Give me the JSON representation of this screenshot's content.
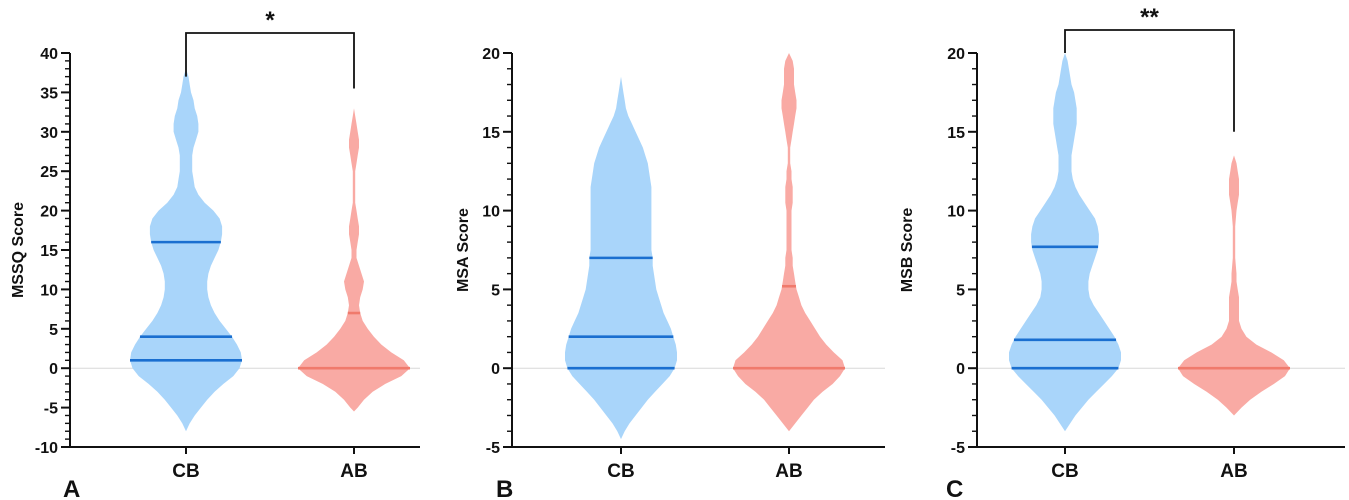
{
  "chart_data": [
    {
      "type": "violin",
      "panel_label": "A",
      "ylabel": "MSSQ Score",
      "xlabel": "",
      "ylim": [
        -10,
        40
      ],
      "y_major_ticks": [
        -10,
        -5,
        0,
        5,
        10,
        15,
        20,
        25,
        30,
        35,
        40
      ],
      "y_minor_step": 1,
      "zero_line": true,
      "categories": [
        "CB",
        "AB"
      ],
      "series": [
        {
          "category": "CB",
          "color": "#a9d5fa",
          "quartile_color": "#1a6fd0",
          "median": 4,
          "q1": 1,
          "q3": 16,
          "density": [
            [
              -8,
              0
            ],
            [
              -7,
              3
            ],
            [
              -6,
              7
            ],
            [
              -5,
              12
            ],
            [
              -4,
              17
            ],
            [
              -3,
              23
            ],
            [
              -2,
              30
            ],
            [
              -1,
              38
            ],
            [
              0,
              43
            ],
            [
              1,
              45
            ],
            [
              2,
              44
            ],
            [
              3,
              41
            ],
            [
              4,
              37
            ],
            [
              5,
              32
            ],
            [
              6,
              27
            ],
            [
              7,
              23
            ],
            [
              8,
              20
            ],
            [
              9,
              18
            ],
            [
              10,
              17
            ],
            [
              11,
              17
            ],
            [
              12,
              18
            ],
            [
              13,
              20
            ],
            [
              14,
              23
            ],
            [
              15,
              26
            ],
            [
              16,
              28
            ],
            [
              17,
              29
            ],
            [
              18,
              29
            ],
            [
              19,
              27
            ],
            [
              20,
              22
            ],
            [
              21,
              15
            ],
            [
              22,
              10
            ],
            [
              23,
              7
            ],
            [
              24,
              6
            ],
            [
              25,
              5
            ],
            [
              26,
              5
            ],
            [
              27,
              5
            ],
            [
              28,
              6
            ],
            [
              29,
              8
            ],
            [
              30,
              10
            ],
            [
              31,
              10
            ],
            [
              32,
              9
            ],
            [
              33,
              7
            ],
            [
              34,
              6
            ],
            [
              35,
              4
            ],
            [
              36,
              3
            ],
            [
              37,
              2
            ],
            [
              38,
              0
            ]
          ]
        },
        {
          "category": "AB",
          "color": "#f9aaa4",
          "quartile_color": "#f07a6c",
          "median": 0,
          "q1": 0,
          "q3": 7,
          "density": [
            [
              -5.5,
              0
            ],
            [
              -5,
              3
            ],
            [
              -4,
              8
            ],
            [
              -3,
              15
            ],
            [
              -2,
              25
            ],
            [
              -1,
              38
            ],
            [
              0,
              45
            ],
            [
              1,
              40
            ],
            [
              2,
              30
            ],
            [
              3,
              22
            ],
            [
              4,
              16
            ],
            [
              5,
              11
            ],
            [
              6,
              7
            ],
            [
              7,
              5
            ],
            [
              8,
              4
            ],
            [
              9,
              5
            ],
            [
              10,
              7
            ],
            [
              11,
              8
            ],
            [
              12,
              6
            ],
            [
              13,
              4
            ],
            [
              14,
              2
            ],
            [
              15,
              2
            ],
            [
              16,
              3
            ],
            [
              17,
              4
            ],
            [
              18,
              4
            ],
            [
              19,
              3
            ],
            [
              20,
              2
            ],
            [
              21,
              1
            ],
            [
              22,
              1
            ],
            [
              23,
              1
            ],
            [
              24,
              1
            ],
            [
              25,
              1
            ],
            [
              26,
              2
            ],
            [
              27,
              3
            ],
            [
              28,
              4
            ],
            [
              29,
              4
            ],
            [
              30,
              3
            ],
            [
              31,
              2
            ],
            [
              32,
              1
            ],
            [
              33,
              0
            ]
          ]
        }
      ],
      "significance": {
        "pair": [
          "CB",
          "AB"
        ],
        "label": "*",
        "left_end": 37,
        "right_end": 35.5
      }
    },
    {
      "type": "violin",
      "panel_label": "B",
      "ylabel": "MSA Score",
      "xlabel": "",
      "ylim": [
        -5,
        20
      ],
      "y_major_ticks": [
        -5,
        0,
        5,
        10,
        15,
        20
      ],
      "y_minor_step": 1,
      "zero_line": true,
      "categories": [
        "CB",
        "AB"
      ],
      "series": [
        {
          "category": "CB",
          "color": "#a9d5fa",
          "quartile_color": "#1a6fd0",
          "median": 2,
          "q1": 0,
          "q3": 7,
          "density": [
            [
              -4.5,
              0
            ],
            [
              -4,
              3
            ],
            [
              -3.5,
              7
            ],
            [
              -3,
              12
            ],
            [
              -2.5,
              17
            ],
            [
              -2,
              22
            ],
            [
              -1.5,
              28
            ],
            [
              -1,
              34
            ],
            [
              -0.5,
              40
            ],
            [
              0,
              44
            ],
            [
              0.5,
              46
            ],
            [
              1,
              46
            ],
            [
              1.5,
              45
            ],
            [
              2,
              43
            ],
            [
              2.5,
              41
            ],
            [
              3,
              38
            ],
            [
              3.5,
              35
            ],
            [
              4,
              33
            ],
            [
              4.5,
              31
            ],
            [
              5,
              29
            ],
            [
              5.5,
              28
            ],
            [
              6,
              27
            ],
            [
              6.5,
              26
            ],
            [
              7,
              26
            ],
            [
              7.5,
              25
            ],
            [
              8,
              25
            ],
            [
              8.5,
              25
            ],
            [
              9,
              25
            ],
            [
              9.5,
              25
            ],
            [
              10,
              25
            ],
            [
              10.5,
              25
            ],
            [
              11,
              25
            ],
            [
              11.5,
              25
            ],
            [
              12,
              24
            ],
            [
              12.5,
              23
            ],
            [
              13,
              22
            ],
            [
              13.5,
              20
            ],
            [
              14,
              18
            ],
            [
              14.5,
              15
            ],
            [
              15,
              12
            ],
            [
              15.5,
              9
            ],
            [
              16,
              6
            ],
            [
              16.5,
              4
            ],
            [
              17,
              3
            ],
            [
              17.5,
              2
            ],
            [
              18,
              1
            ],
            [
              18.5,
              0
            ]
          ]
        },
        {
          "category": "AB",
          "color": "#f9aaa4",
          "quartile_color": "#f07a6c",
          "median": 0,
          "q1": 0,
          "q3": 5.2,
          "density": [
            [
              -4,
              0
            ],
            [
              -3.5,
              5
            ],
            [
              -3,
              10
            ],
            [
              -2.5,
              15
            ],
            [
              -2,
              20
            ],
            [
              -1.5,
              27
            ],
            [
              -1,
              35
            ],
            [
              -0.5,
              41
            ],
            [
              0,
              45
            ],
            [
              0.5,
              43
            ],
            [
              1,
              36
            ],
            [
              1.5,
              30
            ],
            [
              2,
              25
            ],
            [
              2.5,
              21
            ],
            [
              3,
              17
            ],
            [
              3.5,
              13
            ],
            [
              4,
              10
            ],
            [
              4.5,
              8
            ],
            [
              5,
              6
            ],
            [
              5.5,
              5
            ],
            [
              6,
              4
            ],
            [
              6.5,
              3
            ],
            [
              7,
              3
            ],
            [
              7.5,
              2
            ],
            [
              8,
              2
            ],
            [
              9,
              2
            ],
            [
              10,
              2
            ],
            [
              10.5,
              3
            ],
            [
              11,
              3
            ],
            [
              11.5,
              3
            ],
            [
              12,
              2
            ],
            [
              12.5,
              2
            ],
            [
              13,
              1
            ],
            [
              13.5,
              1
            ],
            [
              14,
              1
            ],
            [
              14.5,
              2
            ],
            [
              15,
              3
            ],
            [
              15.5,
              4
            ],
            [
              16,
              5
            ],
            [
              16.5,
              6
            ],
            [
              17,
              6
            ],
            [
              17.5,
              5
            ],
            [
              18,
              4
            ],
            [
              18.5,
              4
            ],
            [
              19,
              4
            ],
            [
              19.5,
              3
            ],
            [
              20,
              0
            ]
          ]
        }
      ]
    },
    {
      "type": "violin",
      "panel_label": "C",
      "ylabel": "MSB Score",
      "xlabel": "",
      "ylim": [
        -5,
        20
      ],
      "y_major_ticks": [
        -5,
        0,
        5,
        10,
        15,
        20
      ],
      "y_minor_step": 1,
      "zero_line": true,
      "categories": [
        "CB",
        "AB"
      ],
      "series": [
        {
          "category": "CB",
          "color": "#a9d5fa",
          "quartile_color": "#1a6fd0",
          "median": 1.8,
          "q1": 0,
          "q3": 7.7,
          "density": [
            [
              -4,
              0
            ],
            [
              -3.5,
              4
            ],
            [
              -3,
              8
            ],
            [
              -2.5,
              13
            ],
            [
              -2,
              18
            ],
            [
              -1.5,
              24
            ],
            [
              -1,
              30
            ],
            [
              -0.5,
              36
            ],
            [
              0,
              41
            ],
            [
              0.5,
              43
            ],
            [
              1,
              43
            ],
            [
              1.5,
              41
            ],
            [
              2,
              38
            ],
            [
              2.5,
              34
            ],
            [
              3,
              30
            ],
            [
              3.5,
              26
            ],
            [
              4,
              22
            ],
            [
              4.5,
              19
            ],
            [
              5,
              18
            ],
            [
              5.5,
              18
            ],
            [
              6,
              19
            ],
            [
              6.5,
              21
            ],
            [
              7,
              23
            ],
            [
              7.5,
              25
            ],
            [
              8,
              26
            ],
            [
              8.5,
              26
            ],
            [
              9,
              25
            ],
            [
              9.5,
              23
            ],
            [
              10,
              19
            ],
            [
              10.5,
              15
            ],
            [
              11,
              11
            ],
            [
              11.5,
              8
            ],
            [
              12,
              6
            ],
            [
              12.5,
              5
            ],
            [
              13,
              5
            ],
            [
              13.5,
              5
            ],
            [
              14,
              6
            ],
            [
              14.5,
              7
            ],
            [
              15,
              8
            ],
            [
              15.5,
              9
            ],
            [
              16,
              9
            ],
            [
              16.5,
              9
            ],
            [
              17,
              8
            ],
            [
              17.5,
              7
            ],
            [
              18,
              5
            ],
            [
              18.5,
              4
            ],
            [
              19,
              3
            ],
            [
              19.5,
              2
            ],
            [
              20,
              0
            ]
          ]
        },
        {
          "category": "AB",
          "color": "#f9aaa4",
          "quartile_color": "#f07a6c",
          "median": 0,
          "q1": 0,
          "q3": 0,
          "density": [
            [
              -3,
              0
            ],
            [
              -2.5,
              6
            ],
            [
              -2,
              13
            ],
            [
              -1.5,
              22
            ],
            [
              -1,
              32
            ],
            [
              -0.5,
              41
            ],
            [
              0,
              45
            ],
            [
              0.5,
              40
            ],
            [
              1,
              30
            ],
            [
              1.5,
              18
            ],
            [
              2,
              10
            ],
            [
              2.5,
              6
            ],
            [
              3,
              4
            ],
            [
              3.5,
              4
            ],
            [
              4,
              4
            ],
            [
              4.5,
              4
            ],
            [
              5,
              3
            ],
            [
              5.5,
              2
            ],
            [
              6,
              2
            ],
            [
              7,
              1
            ],
            [
              8,
              1
            ],
            [
              9,
              1
            ],
            [
              10,
              2
            ],
            [
              10.5,
              3
            ],
            [
              11,
              4
            ],
            [
              11.5,
              4
            ],
            [
              12,
              4
            ],
            [
              12.5,
              3
            ],
            [
              13,
              2
            ],
            [
              13.5,
              0
            ]
          ]
        }
      ],
      "significance": {
        "pair": [
          "CB",
          "AB"
        ],
        "label": "**",
        "left_end": 20,
        "right_end": 15
      }
    }
  ]
}
